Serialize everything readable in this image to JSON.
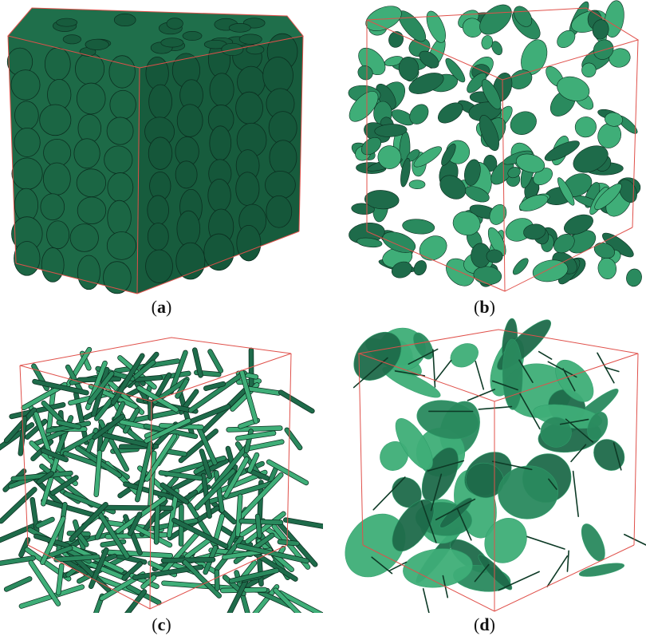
{
  "panels": [
    {
      "id": "a",
      "letter": "a"
    },
    {
      "id": "b",
      "letter": "b"
    },
    {
      "id": "c",
      "letter": "c"
    },
    {
      "id": "d",
      "letter": "d"
    }
  ],
  "colors": {
    "fill_dark": "#1e6b4a",
    "fill_mid": "#2a8a5e",
    "fill_light": "#3fae78",
    "edge": "#0b2f20",
    "box": "#e0504a"
  }
}
